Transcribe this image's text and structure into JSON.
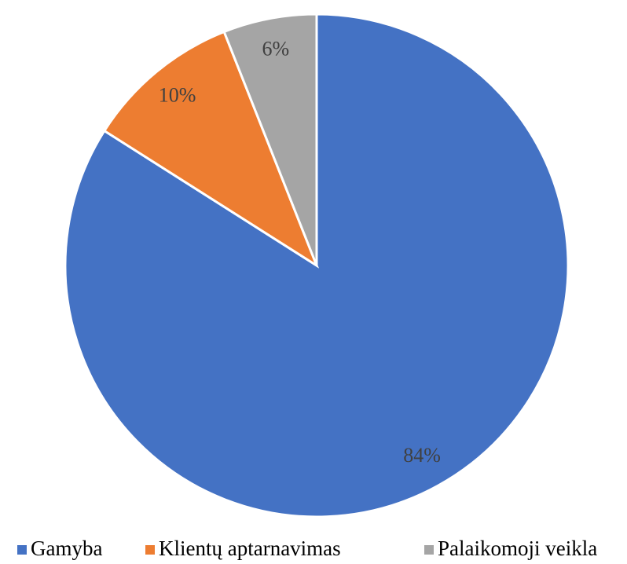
{
  "chart_data": {
    "type": "pie",
    "categories": [
      "Gamyba",
      "Klientų aptarnavimas",
      "Palaikomoji veikla"
    ],
    "values": [
      84,
      10,
      6
    ],
    "value_labels": [
      "84%",
      "10%",
      "6%"
    ],
    "colors": [
      "#4472c4",
      "#ed7d31",
      "#a5a5a5"
    ],
    "legend": "bottom"
  }
}
